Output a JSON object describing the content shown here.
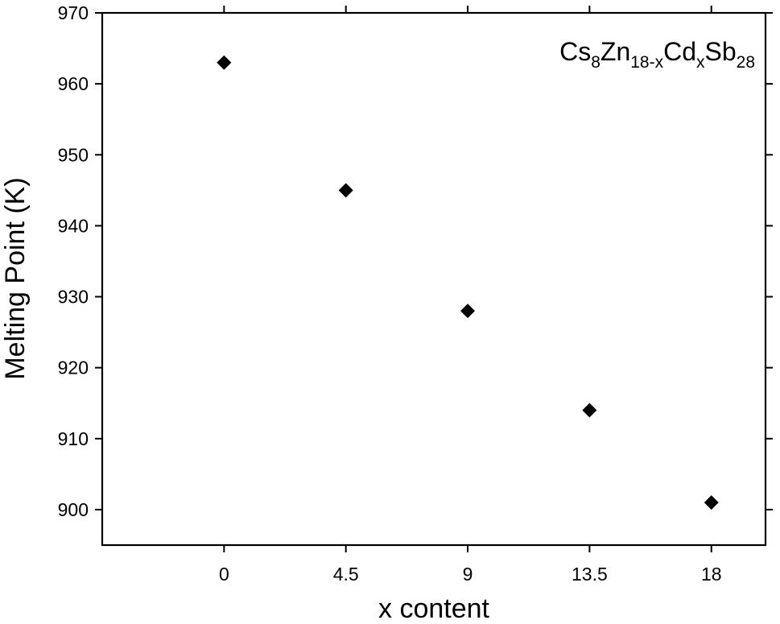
{
  "chart_data": {
    "type": "scatter",
    "title": "",
    "xlabel": "x content",
    "ylabel": "Melting Point (K)",
    "xlim": [
      -4.5,
      20.0
    ],
    "ylim": [
      895,
      970
    ],
    "xticks": [
      0,
      4.5,
      9,
      13.5,
      18
    ],
    "xtick_labels": [
      "0",
      "4.5",
      "9",
      "13.5",
      "18"
    ],
    "yticks": [
      900,
      910,
      920,
      930,
      940,
      950,
      960,
      970
    ],
    "ytick_labels": [
      "900",
      "910",
      "920",
      "930",
      "940",
      "950",
      "960",
      "970"
    ],
    "grid": false,
    "legend": "none",
    "marker": "diamond",
    "marker_color": "#000000",
    "annotation": {
      "text": "Cs8Zn18-xCdxSb28",
      "parts": [
        {
          "text": "Cs",
          "sub": false
        },
        {
          "text": "8",
          "sub": true
        },
        {
          "text": "Zn",
          "sub": false
        },
        {
          "text": "18-x",
          "sub": true
        },
        {
          "text": "Cd",
          "sub": false
        },
        {
          "text": "x",
          "sub": true
        },
        {
          "text": "Sb",
          "sub": false
        },
        {
          "text": "28",
          "sub": true
        }
      ],
      "placement": "top-right"
    },
    "series": [
      {
        "x": [
          0,
          4.5,
          9,
          13.5,
          18
        ],
        "y": [
          963,
          945,
          928,
          914,
          901
        ]
      }
    ]
  }
}
